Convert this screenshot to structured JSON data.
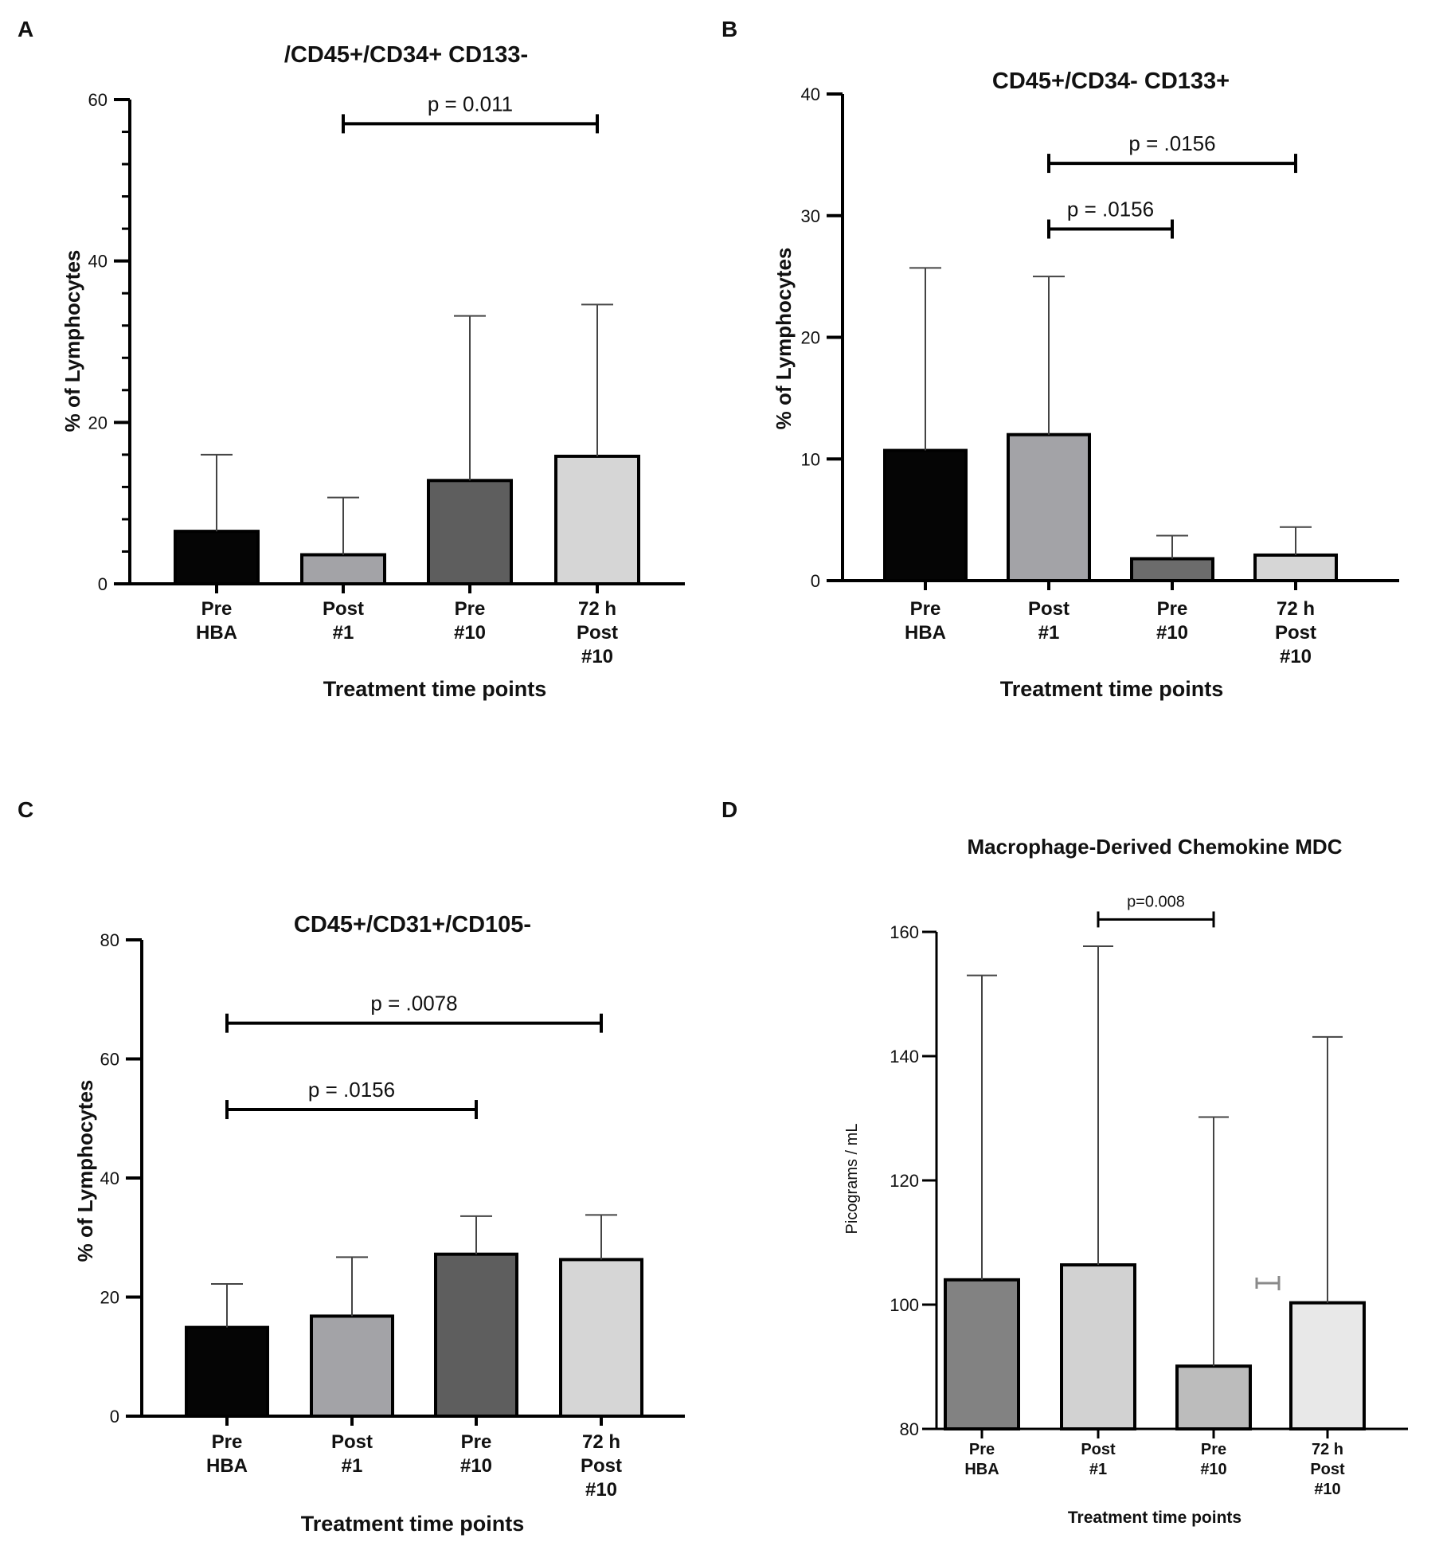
{
  "chart_data": [
    {
      "panel": "A",
      "type": "bar",
      "title": "/CD45+/CD34+ CD133-",
      "xlabel": "Treatment time points",
      "ylabel": "% of Lymphocytes",
      "ylim": [
        0,
        60
      ],
      "yticks": [
        "0",
        "20",
        "40",
        "60"
      ],
      "categories": [
        [
          "Pre",
          "HBA"
        ],
        [
          "Post",
          "#1"
        ],
        [
          "Pre",
          "#10"
        ],
        [
          "72 h",
          "Post",
          "#10"
        ]
      ],
      "values": [
        6.5,
        3.6,
        12.8,
        15.8
      ],
      "error_upper": [
        16.0,
        10.7,
        33.2,
        34.6
      ],
      "colors": [
        "#050505",
        "#a3a3a7",
        "#5e5e5e",
        "#d6d6d6"
      ],
      "significance": [
        {
          "from": 1,
          "to": 3,
          "label": "p = 0.011",
          "y": 57
        }
      ]
    },
    {
      "panel": "B",
      "type": "bar",
      "title": "CD45+/CD34- CD133+",
      "xlabel": "Treatment time points",
      "ylabel": "% of Lymphocytes",
      "ylim": [
        0,
        40
      ],
      "yticks": [
        "0",
        "10",
        "20",
        "30",
        "40"
      ],
      "categories": [
        [
          "Pre",
          "HBA"
        ],
        [
          "Post",
          "#1"
        ],
        [
          "Pre",
          "#10"
        ],
        [
          "72 h",
          "Post",
          "#10"
        ]
      ],
      "values": [
        10.7,
        12.0,
        1.8,
        2.1
      ],
      "error_upper": [
        25.7,
        25.0,
        3.7,
        4.4
      ],
      "colors": [
        "#050505",
        "#a3a3a7",
        "#6c6c6c",
        "#d6d6d6"
      ],
      "significance": [
        {
          "from": 1,
          "to": 3,
          "label": "p = .0156",
          "y": 34.3
        },
        {
          "from": 1,
          "to": 2,
          "label": "p = .0156",
          "y": 28.9
        }
      ]
    },
    {
      "panel": "C",
      "type": "bar",
      "title": "CD45+/CD31+/CD105-",
      "xlabel": "Treatment time points",
      "ylabel": "% of Lymphocytes",
      "ylim": [
        0,
        80
      ],
      "yticks": [
        "0",
        "20",
        "40",
        "60",
        "80"
      ],
      "categories": [
        [
          "Pre",
          "HBA"
        ],
        [
          "Post",
          "#1"
        ],
        [
          "Pre",
          "#10"
        ],
        [
          "72 h",
          "Post",
          "#10"
        ]
      ],
      "values": [
        14.9,
        16.8,
        27.2,
        26.3
      ],
      "error_upper": [
        22.2,
        26.7,
        33.6,
        33.8
      ],
      "colors": [
        "#050505",
        "#a3a3a7",
        "#5e5e5e",
        "#d6d6d6"
      ],
      "significance": [
        {
          "from": 0,
          "to": 3,
          "label": "p = .0078",
          "y": 66.0
        },
        {
          "from": 0,
          "to": 2,
          "label": "p = .0156",
          "y": 51.5
        }
      ]
    },
    {
      "panel": "D",
      "type": "bar",
      "title": "Macrophage-Derived Chemokine MDC",
      "xlabel": "Treatment time points",
      "ylabel": "Picograms / mL",
      "ylim": [
        80,
        160
      ],
      "yticks": [
        "80",
        "100",
        "120",
        "140",
        "160"
      ],
      "categories": [
        [
          "Pre",
          "HBA"
        ],
        [
          "Post",
          "#1"
        ],
        [
          "Pre",
          "#10"
        ],
        [
          "72 h",
          "Post",
          "#10"
        ]
      ],
      "values": [
        104.0,
        106.4,
        90.1,
        100.3
      ],
      "error_upper": [
        153.0,
        157.7,
        130.2,
        143.1
      ],
      "colors": [
        "#828282",
        "#d2d2d2",
        "#bcbcbc",
        "#e8e8e8"
      ],
      "significance": [
        {
          "from": 1,
          "to": 2,
          "label": "p=0.008",
          "y": 162.0
        }
      ]
    }
  ]
}
